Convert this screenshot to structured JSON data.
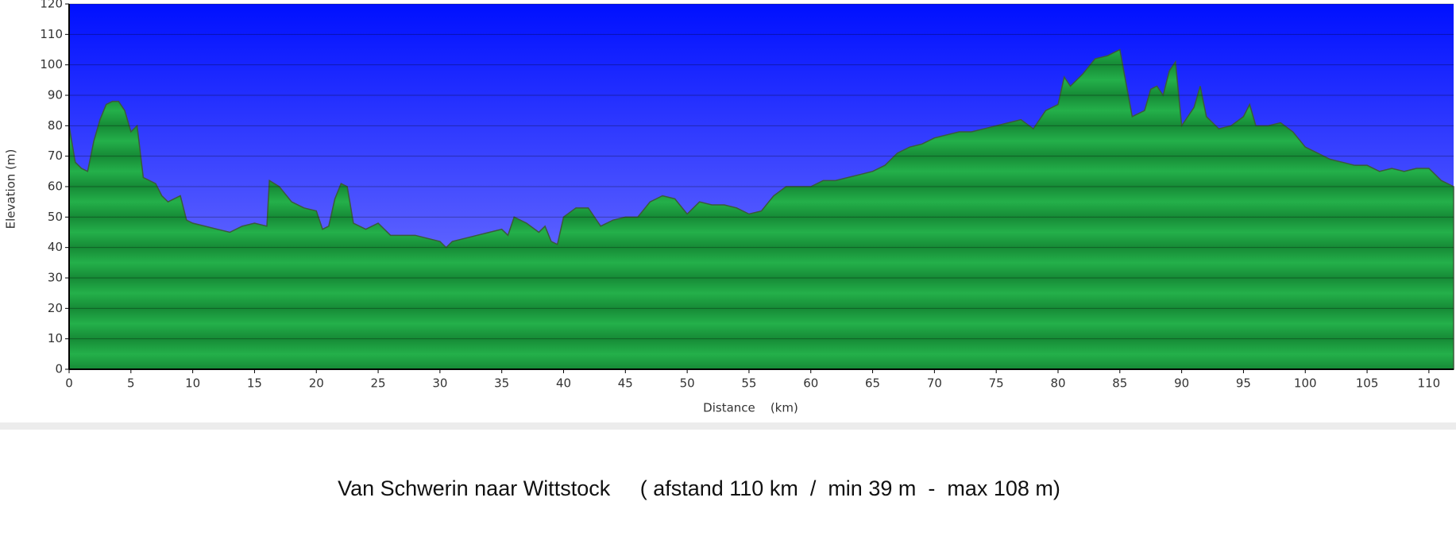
{
  "chart_data": {
    "type": "area",
    "x_label": "Distance    (km)",
    "y_label": "Elevation (m)",
    "caption": "Van Schwerin naar Wittstock     ( afstand 110 km  /  min 39 m  -  max 108 m)",
    "x": [
      0,
      0.5,
      1,
      1.5,
      2,
      2.5,
      3,
      3.5,
      4,
      4.5,
      5,
      5.5,
      6,
      7,
      7.5,
      8,
      9,
      9.5,
      10,
      12,
      13,
      14,
      15,
      16,
      16.2,
      17,
      18,
      19,
      20,
      20.5,
      21,
      21.5,
      22,
      22.5,
      23,
      24,
      25,
      26,
      27,
      28,
      29,
      30,
      30.5,
      31,
      32,
      33,
      34,
      35,
      35.5,
      36,
      37,
      38,
      38.5,
      39,
      39.5,
      40,
      41,
      42,
      43,
      44,
      45,
      46,
      47,
      48,
      49,
      50,
      51,
      52,
      53,
      54,
      55,
      56,
      57,
      58,
      59,
      60,
      61,
      62,
      63,
      64,
      65,
      66,
      67,
      68,
      69,
      70,
      71,
      72,
      73,
      74,
      75,
      76,
      77,
      78,
      79,
      80,
      80.5,
      81,
      82,
      83,
      84,
      84.5,
      85,
      86,
      87,
      87.5,
      88,
      88.5,
      89,
      89.5,
      90,
      91,
      91.5,
      92,
      93,
      94,
      95,
      95.5,
      96,
      97,
      98,
      99,
      100,
      101,
      102,
      103,
      104,
      105,
      106,
      107,
      108,
      109,
      110,
      111,
      112
    ],
    "values": [
      80,
      68,
      66,
      65,
      75,
      82,
      87,
      88,
      88,
      85,
      78,
      80,
      63,
      61,
      57,
      55,
      57,
      49,
      48,
      46,
      45,
      47,
      48,
      47,
      62,
      60,
      55,
      53,
      52,
      46,
      47,
      56,
      61,
      60,
      48,
      46,
      48,
      44,
      44,
      44,
      43,
      42,
      40,
      42,
      43,
      44,
      45,
      46,
      44,
      50,
      48,
      45,
      47,
      42,
      41,
      50,
      53,
      53,
      47,
      49,
      50,
      50,
      55,
      57,
      56,
      51,
      55,
      54,
      54,
      53,
      51,
      52,
      57,
      60,
      60,
      60,
      62,
      62,
      63,
      64,
      65,
      67,
      71,
      73,
      74,
      76,
      77,
      78,
      78,
      79,
      80,
      81,
      82,
      79,
      85,
      87,
      96,
      93,
      97,
      102,
      103,
      104,
      105,
      83,
      85,
      92,
      93,
      90,
      98,
      101,
      80,
      86,
      93,
      83,
      79,
      80,
      83,
      87,
      80,
      80,
      81,
      78,
      73,
      71,
      69,
      68,
      67,
      67,
      65,
      66,
      65,
      66,
      66,
      62,
      60
    ],
    "color": "#1fa643",
    "xlim": [
      0,
      112
    ],
    "ylim": [
      0,
      120
    ],
    "xticks": [
      0,
      5,
      10,
      15,
      20,
      25,
      30,
      35,
      40,
      45,
      50,
      55,
      60,
      65,
      70,
      75,
      80,
      85,
      90,
      95,
      100,
      105,
      110
    ],
    "yticks": [
      0,
      10,
      20,
      30,
      40,
      50,
      60,
      70,
      80,
      90,
      100,
      110,
      120
    ],
    "grid": true
  }
}
